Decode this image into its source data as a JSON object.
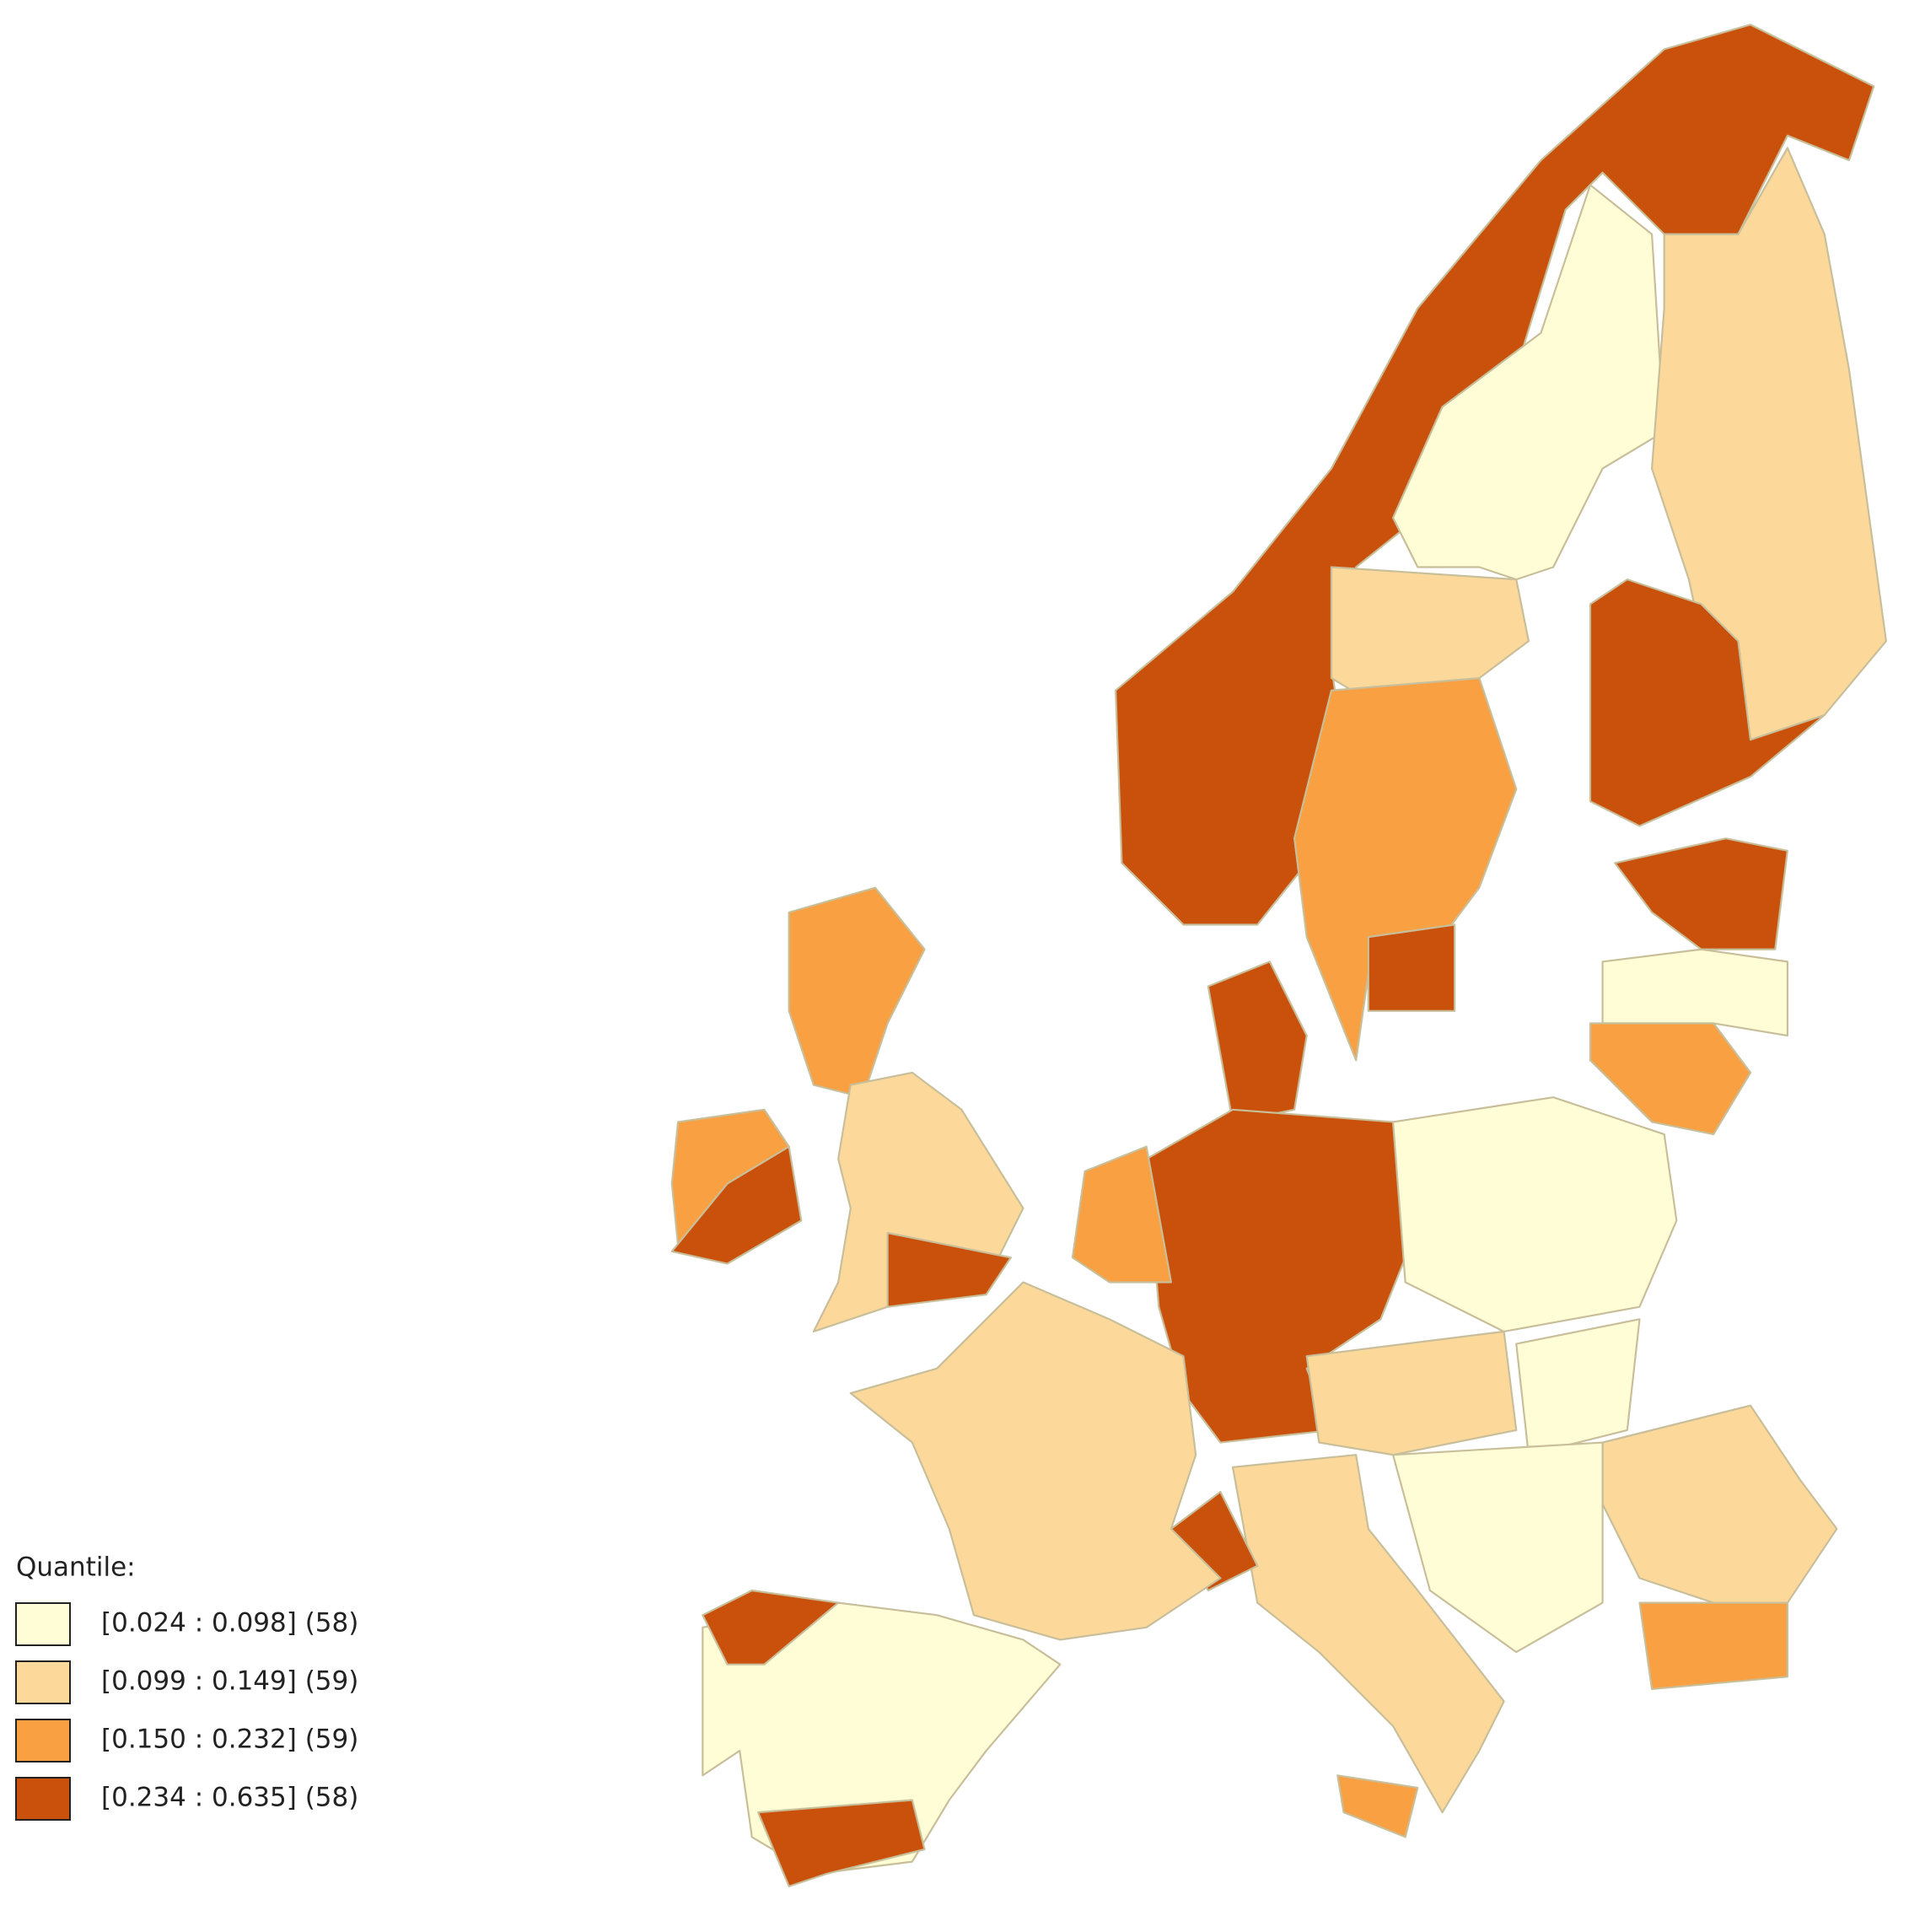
{
  "legend": {
    "title": "Quantile:",
    "classes": [
      {
        "label": "[0.024 : 0.098] (58)",
        "color": "#fffdd6"
      },
      {
        "label": "[0.099 : 0.149] (59)",
        "color": "#fcd99a"
      },
      {
        "label": "[0.150 : 0.232] (59)",
        "color": "#f9a043"
      },
      {
        "label": "[0.234 : 0.635] (58)",
        "color": "#c9510c"
      }
    ]
  }
}
